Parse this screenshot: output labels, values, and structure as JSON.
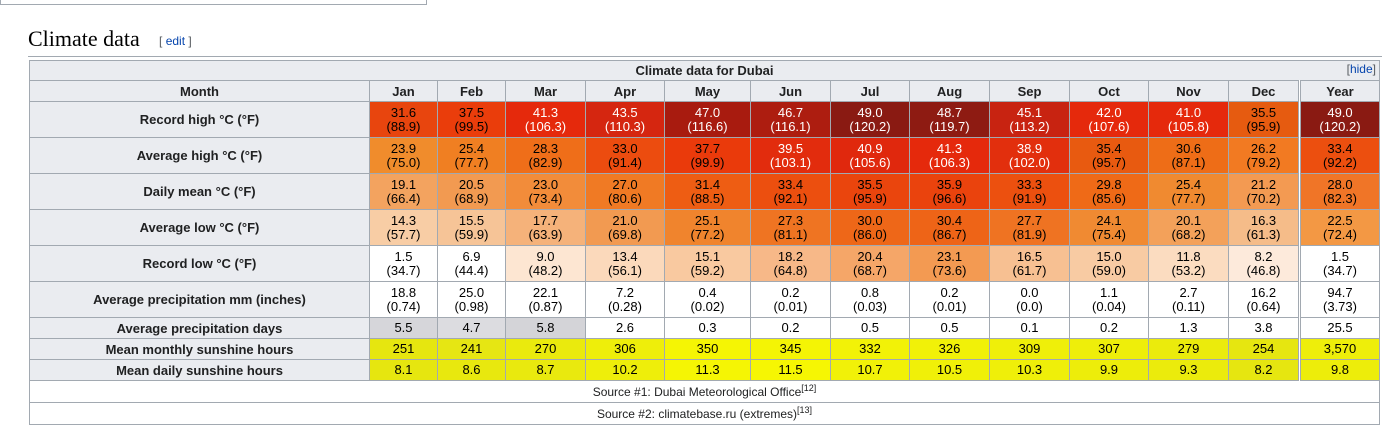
{
  "section": {
    "title": "Climate data",
    "edit_open": "[",
    "edit_label": "edit",
    "edit_close": "]"
  },
  "table": {
    "caption": "Climate data for Dubai",
    "hide_open": "[",
    "hide_label": "hide",
    "hide_close": "]",
    "corner_label": "Month",
    "months": [
      "Jan",
      "Feb",
      "Mar",
      "Apr",
      "May",
      "Jun",
      "Jul",
      "Aug",
      "Sep",
      "Oct",
      "Nov",
      "Dec",
      "Year"
    ],
    "rows": [
      {
        "label": "Record high °C (°F)",
        "kind": "two",
        "values": [
          [
            "31.6",
            "(88.9)"
          ],
          [
            "37.5",
            "(99.5)"
          ],
          [
            "41.3",
            "(106.3)"
          ],
          [
            "43.5",
            "(110.3)"
          ],
          [
            "47.0",
            "(116.6)"
          ],
          [
            "46.7",
            "(116.1)"
          ],
          [
            "49.0",
            "(120.2)"
          ],
          [
            "48.7",
            "(119.7)"
          ],
          [
            "45.1",
            "(113.2)"
          ],
          [
            "42.0",
            "(107.6)"
          ],
          [
            "41.0",
            "(105.8)"
          ],
          [
            "35.5",
            "(95.9)"
          ],
          [
            "49.0",
            "(120.2)"
          ]
        ],
        "colors": [
          "#e8450e",
          "#ea3d0b",
          "#e5290c",
          "#d52610",
          "#a81b0f",
          "#ad1d10",
          "#8a1a12",
          "#8e1b12",
          "#c82311",
          "#e5290c",
          "#e5290c",
          "#e65b10",
          "#8a1a12"
        ],
        "text_colors": [
          "#000",
          "#000",
          "#fff",
          "#fff",
          "#fff",
          "#fff",
          "#fff",
          "#fff",
          "#fff",
          "#fff",
          "#fff",
          "#000",
          "#fff"
        ]
      },
      {
        "label": "Average high °C (°F)",
        "kind": "two",
        "values": [
          [
            "23.9",
            "(75.0)"
          ],
          [
            "25.4",
            "(77.7)"
          ],
          [
            "28.3",
            "(82.9)"
          ],
          [
            "33.0",
            "(91.4)"
          ],
          [
            "37.7",
            "(99.9)"
          ],
          [
            "39.5",
            "(103.1)"
          ],
          [
            "40.9",
            "(105.6)"
          ],
          [
            "41.3",
            "(106.3)"
          ],
          [
            "38.9",
            "(102.0)"
          ],
          [
            "35.4",
            "(95.7)"
          ],
          [
            "30.6",
            "(87.1)"
          ],
          [
            "26.2",
            "(79.2)"
          ],
          [
            "33.4",
            "(92.2)"
          ]
        ],
        "colors": [
          "#f08c2c",
          "#f07f22",
          "#ef6e19",
          "#ec4c0f",
          "#ea3a0b",
          "#e22c0d",
          "#e0280d",
          "#e5290c",
          "#e22f0d",
          "#e85a10",
          "#ee6d17",
          "#f27a22",
          "#ec4f0f"
        ],
        "text_colors": [
          "#000",
          "#000",
          "#000",
          "#000",
          "#000",
          "#fff",
          "#fff",
          "#fff",
          "#fff",
          "#000",
          "#000",
          "#000",
          "#000"
        ]
      },
      {
        "label": "Daily mean °C (°F)",
        "kind": "two",
        "values": [
          [
            "19.1",
            "(66.4)"
          ],
          [
            "20.5",
            "(68.9)"
          ],
          [
            "23.0",
            "(73.4)"
          ],
          [
            "27.0",
            "(80.6)"
          ],
          [
            "31.4",
            "(88.5)"
          ],
          [
            "33.4",
            "(92.1)"
          ],
          [
            "35.5",
            "(95.9)"
          ],
          [
            "35.9",
            "(96.6)"
          ],
          [
            "33.3",
            "(91.9)"
          ],
          [
            "29.8",
            "(85.6)"
          ],
          [
            "25.4",
            "(77.7)"
          ],
          [
            "21.2",
            "(70.2)"
          ],
          [
            "28.0",
            "(82.3)"
          ]
        ],
        "colors": [
          "#f3a35f",
          "#f29a51",
          "#f28c3a",
          "#f07a24",
          "#ee5d13",
          "#ec4f0f",
          "#ea450d",
          "#ea430d",
          "#ec500f",
          "#ef6a17",
          "#f08a30",
          "#f39a52",
          "#f07527"
        ],
        "text_colors": [
          "#000",
          "#000",
          "#000",
          "#000",
          "#000",
          "#000",
          "#000",
          "#000",
          "#000",
          "#000",
          "#000",
          "#000",
          "#000"
        ]
      },
      {
        "label": "Average low °C (°F)",
        "kind": "two",
        "values": [
          [
            "14.3",
            "(57.7)"
          ],
          [
            "15.5",
            "(59.9)"
          ],
          [
            "17.7",
            "(63.9)"
          ],
          [
            "21.0",
            "(69.8)"
          ],
          [
            "25.1",
            "(77.2)"
          ],
          [
            "27.3",
            "(81.1)"
          ],
          [
            "30.0",
            "(86.0)"
          ],
          [
            "30.4",
            "(86.7)"
          ],
          [
            "27.7",
            "(81.9)"
          ],
          [
            "24.1",
            "(75.4)"
          ],
          [
            "20.1",
            "(68.2)"
          ],
          [
            "16.3",
            "(61.3)"
          ],
          [
            "22.5",
            "(72.4)"
          ]
        ],
        "colors": [
          "#f8cda5",
          "#f6c497",
          "#f5b27a",
          "#f29a51",
          "#f0842d",
          "#ef7422",
          "#ee6718",
          "#ee6417",
          "#ef7322",
          "#f08a32",
          "#f3a15a",
          "#f5bc89",
          "#f39844"
        ],
        "text_colors": [
          "#000",
          "#000",
          "#000",
          "#000",
          "#000",
          "#000",
          "#000",
          "#000",
          "#000",
          "#000",
          "#000",
          "#000",
          "#000"
        ]
      },
      {
        "label": "Record low °C (°F)",
        "kind": "two",
        "values": [
          [
            "1.5",
            "(34.7)"
          ],
          [
            "6.9",
            "(44.4)"
          ],
          [
            "9.0",
            "(48.2)"
          ],
          [
            "13.4",
            "(56.1)"
          ],
          [
            "15.1",
            "(59.2)"
          ],
          [
            "18.2",
            "(64.8)"
          ],
          [
            "20.4",
            "(68.7)"
          ],
          [
            "23.1",
            "(73.6)"
          ],
          [
            "16.5",
            "(61.7)"
          ],
          [
            "15.0",
            "(59.0)"
          ],
          [
            "11.8",
            "(53.2)"
          ],
          [
            "8.2",
            "(46.8)"
          ],
          [
            "1.5",
            "(34.7)"
          ]
        ],
        "colors": [
          "#ffffff",
          "#ffffff",
          "#fde6d2",
          "#fbd9bb",
          "#f9c9a0",
          "#f7b888",
          "#f5a668",
          "#f39a52",
          "#f7c092",
          "#f8cba3",
          "#fbdcc0",
          "#fdeadb",
          "#ffffff"
        ],
        "text_colors": [
          "#000",
          "#000",
          "#000",
          "#000",
          "#000",
          "#000",
          "#000",
          "#000",
          "#000",
          "#000",
          "#000",
          "#000",
          "#000"
        ]
      },
      {
        "label": "Average precipitation mm (inches)",
        "kind": "two",
        "values": [
          [
            "18.8",
            "(0.74)"
          ],
          [
            "25.0",
            "(0.98)"
          ],
          [
            "22.1",
            "(0.87)"
          ],
          [
            "7.2",
            "(0.28)"
          ],
          [
            "0.4",
            "(0.02)"
          ],
          [
            "0.2",
            "(0.01)"
          ],
          [
            "0.8",
            "(0.03)"
          ],
          [
            "0.2",
            "(0.01)"
          ],
          [
            "0.0",
            "(0.0)"
          ],
          [
            "1.1",
            "(0.04)"
          ],
          [
            "2.7",
            "(0.11)"
          ],
          [
            "16.2",
            "(0.64)"
          ],
          [
            "94.7",
            "(3.73)"
          ]
        ],
        "colors": [
          "#ffffff",
          "#ffffff",
          "#ffffff",
          "#ffffff",
          "#ffffff",
          "#ffffff",
          "#ffffff",
          "#ffffff",
          "#ffffff",
          "#ffffff",
          "#ffffff",
          "#ffffff",
          "#ffffff"
        ],
        "text_colors": [
          "#000",
          "#000",
          "#000",
          "#000",
          "#000",
          "#000",
          "#000",
          "#000",
          "#000",
          "#000",
          "#000",
          "#000",
          "#000"
        ]
      },
      {
        "label": "Average precipitation days",
        "kind": "one",
        "values": [
          "5.5",
          "4.7",
          "5.8",
          "2.6",
          "0.3",
          "0.2",
          "0.5",
          "0.5",
          "0.1",
          "0.2",
          "1.3",
          "3.8",
          "25.5"
        ],
        "colors": [
          "#d6d6da",
          "#dcdce0",
          "#d4d4d8",
          "#ffffff",
          "#ffffff",
          "#ffffff",
          "#ffffff",
          "#ffffff",
          "#ffffff",
          "#ffffff",
          "#ffffff",
          "#ffffff",
          "#ffffff"
        ],
        "text_colors": [
          "#000",
          "#000",
          "#000",
          "#000",
          "#000",
          "#000",
          "#000",
          "#000",
          "#000",
          "#000",
          "#000",
          "#000",
          "#000"
        ]
      },
      {
        "label": "Mean monthly sunshine hours",
        "kind": "one",
        "values": [
          "251",
          "241",
          "270",
          "306",
          "350",
          "345",
          "332",
          "326",
          "309",
          "307",
          "279",
          "254",
          "3,570"
        ],
        "colors": [
          "#e6e60f",
          "#e6e613",
          "#eaea0d",
          "#eeee0a",
          "#f5f504",
          "#f4f405",
          "#f2f207",
          "#f1f108",
          "#efef09",
          "#eeee0a",
          "#ebeb0c",
          "#e6e610",
          "#eeee0a"
        ],
        "text_colors": [
          "#000",
          "#000",
          "#000",
          "#000",
          "#000",
          "#000",
          "#000",
          "#000",
          "#000",
          "#000",
          "#000",
          "#000",
          "#000"
        ]
      },
      {
        "label": "Mean daily sunshine hours",
        "kind": "one",
        "values": [
          "8.1",
          "8.6",
          "8.7",
          "10.2",
          "11.3",
          "11.5",
          "10.7",
          "10.5",
          "10.3",
          "9.9",
          "9.3",
          "8.2",
          "9.8"
        ],
        "colors": [
          "#e6e60f",
          "#e8e80e",
          "#e9e90e",
          "#eeee0a",
          "#f5f504",
          "#f6f603",
          "#f1f108",
          "#f0f008",
          "#efef09",
          "#eded0a",
          "#ebeb0c",
          "#e6e610",
          "#eded0a"
        ],
        "text_colors": [
          "#000",
          "#000",
          "#000",
          "#000",
          "#000",
          "#000",
          "#000",
          "#000",
          "#000",
          "#000",
          "#000",
          "#000",
          "#000"
        ]
      }
    ],
    "sources": [
      {
        "prefix": "Source #1: ",
        "text": "Dubai Meteorological Office",
        "ref": "[12]"
      },
      {
        "prefix": "Source #2: ",
        "text": "climatebase.ru (extremes)",
        "ref": "[13]"
      }
    ]
  }
}
